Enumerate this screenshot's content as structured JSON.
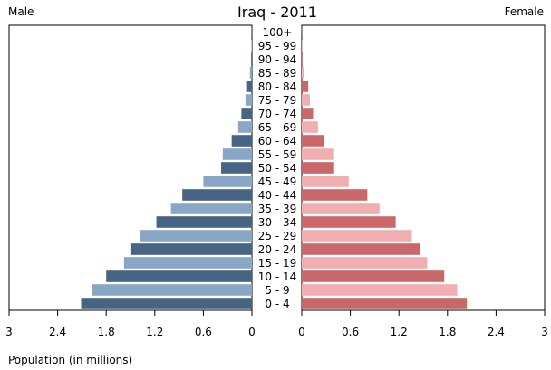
{
  "chart_data": {
    "type": "bar",
    "title": "Iraq - 2011",
    "xlabel": "Population (in millions)",
    "male_label": "Male",
    "female_label": "Female",
    "xlim": [
      0,
      3
    ],
    "ticks": [
      3,
      2.4,
      1.8,
      1.2,
      0.6,
      0
    ],
    "tick_labels": [
      "3",
      "2.4",
      "1.8",
      "1.2",
      "0.6",
      "0"
    ],
    "categories": [
      "0 - 4",
      "5 - 9",
      "10 - 14",
      "15 - 19",
      "20 - 24",
      "25 - 29",
      "30 - 34",
      "35 - 39",
      "40 - 44",
      "45 - 49",
      "50 - 54",
      "55 - 59",
      "60 - 64",
      "65 - 69",
      "70 - 74",
      "75 - 79",
      "80 - 84",
      "85 - 89",
      "90 - 94",
      "95 - 99",
      "100+"
    ],
    "series": [
      {
        "name": "Male",
        "values": [
          2.11,
          1.98,
          1.8,
          1.58,
          1.49,
          1.38,
          1.18,
          1.0,
          0.86,
          0.6,
          0.38,
          0.36,
          0.25,
          0.17,
          0.13,
          0.08,
          0.06,
          0.025,
          0.01,
          0.005,
          0.002
        ],
        "colors": [
          "#476485",
          "#8aa6c7"
        ]
      },
      {
        "name": "Female",
        "values": [
          2.04,
          1.92,
          1.76,
          1.55,
          1.46,
          1.36,
          1.16,
          0.96,
          0.81,
          0.58,
          0.4,
          0.4,
          0.27,
          0.2,
          0.14,
          0.1,
          0.08,
          0.03,
          0.01,
          0.004,
          0.002
        ],
        "colors": [
          "#c9676a",
          "#f0aeb0"
        ]
      }
    ]
  }
}
